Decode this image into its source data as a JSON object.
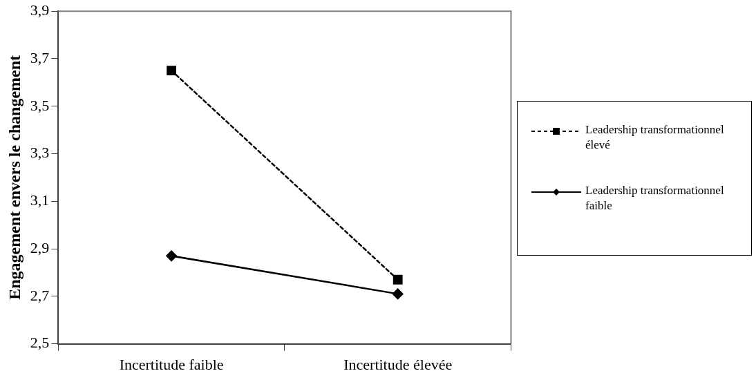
{
  "chart_data": {
    "type": "line",
    "ylabel": "Engagement envers le changement",
    "categories": [
      "Incertitude faible",
      "Incertitude élevée"
    ],
    "series": [
      {
        "name": "Leadership transformationnel élevé",
        "color": "#000000",
        "marker": "square",
        "line_style": "dashed",
        "values": [
          3.65,
          2.77
        ]
      },
      {
        "name": "Leadership transformationnel faible",
        "color": "#000000",
        "marker": "diamond",
        "line_style": "solid",
        "values": [
          2.87,
          2.71
        ]
      }
    ],
    "ylim": [
      2.5,
      3.9
    ],
    "yticks": [
      {
        "value": 2.5,
        "label": "2,5"
      },
      {
        "value": 2.7,
        "label": "2,7"
      },
      {
        "value": 2.9,
        "label": "2,9"
      },
      {
        "value": 3.1,
        "label": "3,1"
      },
      {
        "value": 3.3,
        "label": "3,3"
      },
      {
        "value": 3.5,
        "label": "3,5"
      },
      {
        "value": 3.7,
        "label": "3,7"
      },
      {
        "value": 3.9,
        "label": "3,9"
      }
    ],
    "grid": false,
    "legend": "right"
  }
}
